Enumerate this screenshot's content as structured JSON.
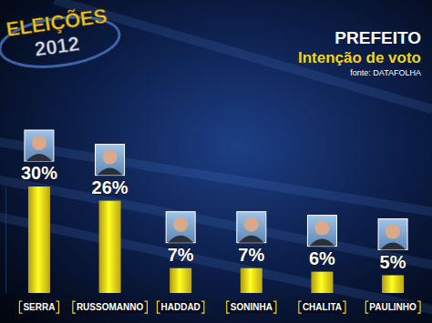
{
  "chart_data": {
    "type": "bar",
    "title": "PREFEITO",
    "subtitle": "Intenção de voto",
    "annotations": [
      "fonte: DATAFOLHA",
      "ELEIÇÕES",
      "2012"
    ],
    "categories": [
      "SERRA",
      "RUSSOMANNO",
      "HADDAD",
      "SONINHA",
      "CHALITA",
      "PAULINHO"
    ],
    "values": [
      30,
      26,
      7,
      7,
      6,
      5
    ],
    "value_labels": [
      "30%",
      "26%",
      "7%",
      "7%",
      "6%",
      "5%"
    ],
    "color": "#f2d21a",
    "ylim": [
      0,
      30
    ],
    "yticks": [],
    "data_labels": true,
    "tick_labels": "x",
    "grid": false
  }
}
